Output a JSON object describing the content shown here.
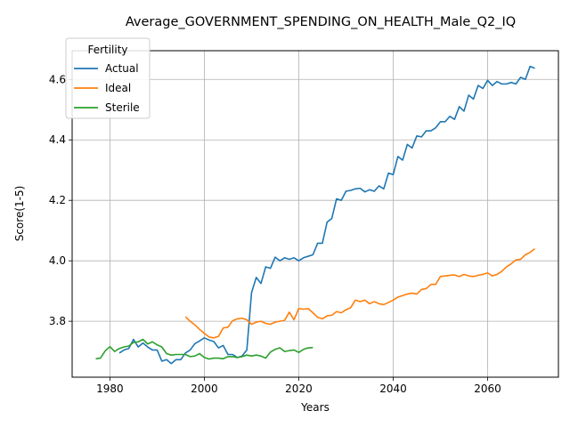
{
  "chart_data": {
    "type": "line",
    "title": "Average_GOVERNMENT_SPENDING_ON_HEALTH_Male_Q2_IQ",
    "xlabel": "Years",
    "ylabel": "Score(1-5)",
    "xlim": [
      1972,
      2075
    ],
    "ylim": [
      3.615,
      4.695
    ],
    "xticks": [
      1980,
      2000,
      2020,
      2040,
      2060
    ],
    "yticks": [
      3.8,
      4.0,
      4.2,
      4.4,
      4.6
    ],
    "grid": true,
    "legend": {
      "title": "Fertility",
      "placement": "top-left"
    },
    "series": [
      {
        "name": "Actual",
        "color": "#1f77b4",
        "x": [
          1982,
          1983,
          1984,
          1985,
          1986,
          1987,
          1988,
          1989,
          1990,
          1991,
          1992,
          1993,
          1994,
          1995,
          1996,
          1997,
          1998,
          1999,
          2000,
          2001,
          2002,
          2003,
          2004,
          2005,
          2006,
          2007,
          2008,
          2009,
          2010,
          2011,
          2012,
          2013,
          2014,
          2015,
          2016,
          2017,
          2018,
          2019,
          2020,
          2021,
          2022,
          2023,
          2024,
          2025,
          2026,
          2027,
          2028,
          2029,
          2030,
          2031,
          2032,
          2033,
          2034,
          2035,
          2036,
          2037,
          2038,
          2039,
          2040,
          2041,
          2042,
          2043,
          2044,
          2045,
          2046,
          2047,
          2048,
          2049,
          2050,
          2051,
          2052,
          2053,
          2054,
          2055,
          2056,
          2057,
          2058,
          2059,
          2060,
          2061,
          2062,
          2063,
          2064,
          2065,
          2066,
          2067,
          2068,
          2069,
          2070
        ],
        "y": [
          3.695,
          3.705,
          3.71,
          3.74,
          3.715,
          3.728,
          3.715,
          3.705,
          3.705,
          3.668,
          3.673,
          3.66,
          3.673,
          3.673,
          3.695,
          3.705,
          3.726,
          3.735,
          3.745,
          3.738,
          3.733,
          3.712,
          3.72,
          3.69,
          3.69,
          3.68,
          3.685,
          3.705,
          3.895,
          3.945,
          3.925,
          3.98,
          3.975,
          4.012,
          4.0,
          4.01,
          4.005,
          4.01,
          4.0,
          4.01,
          4.015,
          4.02,
          4.058,
          4.058,
          4.128,
          4.14,
          4.205,
          4.2,
          4.23,
          4.233,
          4.238,
          4.24,
          4.228,
          4.235,
          4.23,
          4.248,
          4.238,
          4.29,
          4.285,
          4.345,
          4.333,
          4.385,
          4.373,
          4.413,
          4.41,
          4.43,
          4.43,
          4.44,
          4.46,
          4.46,
          4.478,
          4.468,
          4.51,
          4.495,
          4.548,
          4.535,
          4.58,
          4.57,
          4.597,
          4.58,
          4.593,
          4.585,
          4.585,
          4.59,
          4.585,
          4.607,
          4.6,
          4.643,
          4.637
        ]
      },
      {
        "name": "Ideal",
        "color": "#ff7f0e",
        "x": [
          1996,
          1997,
          1998,
          1999,
          2000,
          2001,
          2002,
          2003,
          2004,
          2005,
          2006,
          2007,
          2008,
          2009,
          2010,
          2011,
          2012,
          2013,
          2014,
          2015,
          2016,
          2017,
          2018,
          2019,
          2020,
          2021,
          2022,
          2023,
          2024,
          2025,
          2026,
          2027,
          2028,
          2029,
          2030,
          2031,
          2032,
          2033,
          2034,
          2035,
          2036,
          2037,
          2038,
          2039,
          2040,
          2041,
          2042,
          2043,
          2044,
          2045,
          2046,
          2047,
          2048,
          2049,
          2050,
          2051,
          2052,
          2053,
          2054,
          2055,
          2056,
          2057,
          2058,
          2059,
          2060,
          2061,
          2062,
          2063,
          2064,
          2065,
          2066,
          2067,
          2068,
          2069,
          2070
        ],
        "y": [
          3.815,
          3.8,
          3.788,
          3.773,
          3.76,
          3.748,
          3.745,
          3.75,
          3.778,
          3.78,
          3.802,
          3.808,
          3.81,
          3.805,
          3.79,
          3.797,
          3.8,
          3.793,
          3.79,
          3.797,
          3.8,
          3.803,
          3.83,
          3.805,
          3.842,
          3.84,
          3.842,
          3.828,
          3.813,
          3.808,
          3.818,
          3.82,
          3.832,
          3.828,
          3.838,
          3.845,
          3.87,
          3.865,
          3.87,
          3.858,
          3.865,
          3.858,
          3.855,
          3.862,
          3.87,
          3.88,
          3.885,
          3.89,
          3.893,
          3.89,
          3.905,
          3.908,
          3.922,
          3.922,
          3.948,
          3.95,
          3.952,
          3.953,
          3.948,
          3.955,
          3.95,
          3.948,
          3.952,
          3.955,
          3.96,
          3.95,
          3.955,
          3.965,
          3.98,
          3.99,
          4.003,
          4.005,
          4.02,
          4.028,
          4.04
        ]
      },
      {
        "name": "Sterile",
        "color": "#2ca02c",
        "x": [
          1977,
          1978,
          1979,
          1980,
          1981,
          1982,
          1983,
          1984,
          1985,
          1986,
          1987,
          1988,
          1989,
          1990,
          1991,
          1992,
          1993,
          1994,
          1995,
          1996,
          1997,
          1998,
          1999,
          2000,
          2001,
          2002,
          2003,
          2004,
          2005,
          2006,
          2007,
          2008,
          2009,
          2010,
          2011,
          2012,
          2013,
          2014,
          2015,
          2016,
          2017,
          2018,
          2019,
          2020,
          2021,
          2022,
          2023
        ],
        "y": [
          3.676,
          3.678,
          3.702,
          3.716,
          3.7,
          3.71,
          3.715,
          3.718,
          3.73,
          3.732,
          3.74,
          3.725,
          3.732,
          3.722,
          3.715,
          3.693,
          3.688,
          3.69,
          3.69,
          3.69,
          3.683,
          3.685,
          3.693,
          3.68,
          3.675,
          3.678,
          3.678,
          3.676,
          3.683,
          3.683,
          3.68,
          3.683,
          3.688,
          3.685,
          3.688,
          3.685,
          3.678,
          3.698,
          3.707,
          3.712,
          3.7,
          3.703,
          3.705,
          3.697,
          3.707,
          3.712,
          3.713
        ]
      }
    ]
  }
}
